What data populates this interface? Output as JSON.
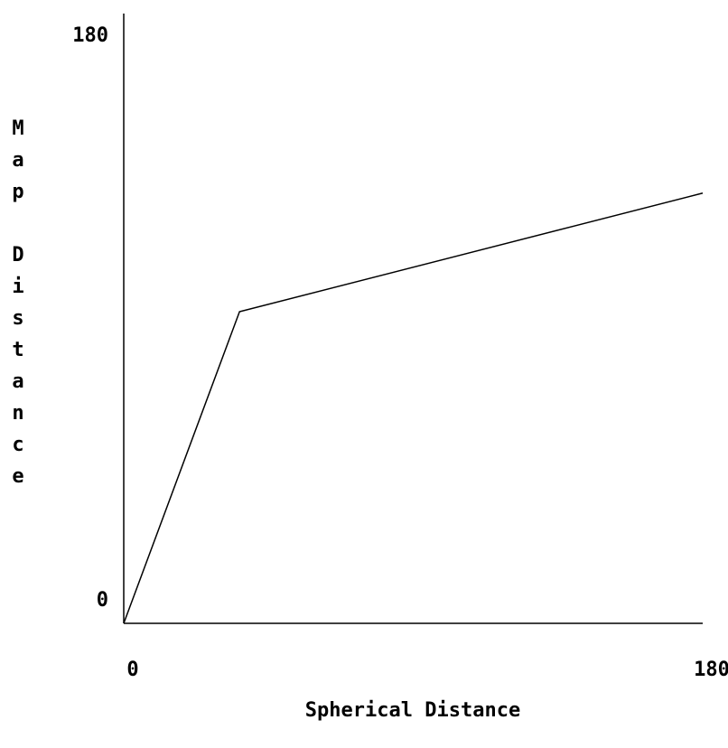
{
  "chart_data": {
    "type": "line",
    "x_label": "Spherical Distance",
    "y_label": "Map Distance",
    "x": [
      0,
      36,
      180
    ],
    "series": [
      {
        "color": "#000000",
        "values": [
          0,
          92,
          127
        ]
      }
    ],
    "xlim": [
      0,
      180
    ],
    "ylim": [
      0,
      180
    ],
    "xticks": [
      0,
      180
    ],
    "yticks": [
      0,
      180
    ],
    "grid": false
  }
}
